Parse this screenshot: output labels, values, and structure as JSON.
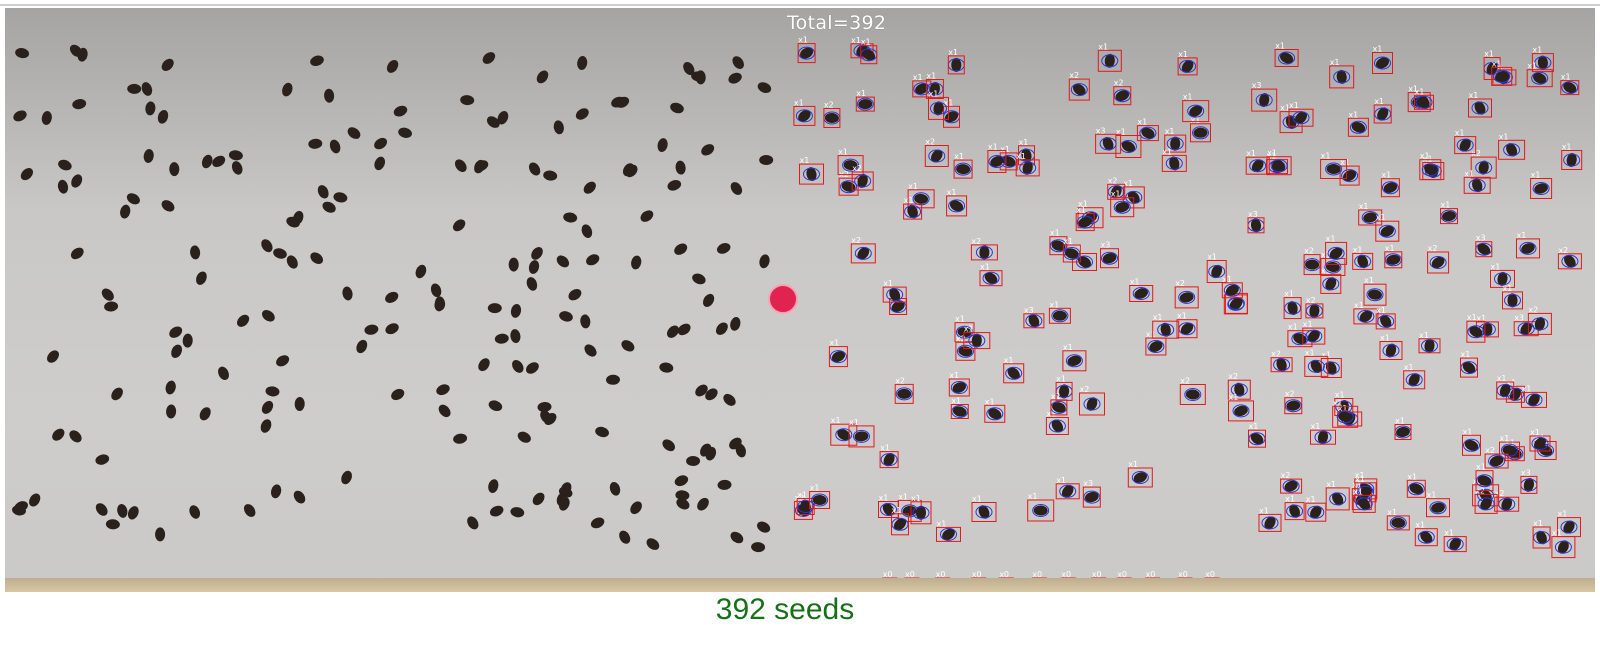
{
  "overlay": {
    "total_text": "Total=392"
  },
  "caption": {
    "count_text": "392 seeds"
  },
  "colors": {
    "seed": "#2a211d",
    "box": "#e11a1a",
    "outline": "#2b36d9",
    "record": "#e0244f",
    "caption": "#167016"
  },
  "detection_labels": [
    "x1",
    "x2",
    "x3",
    "x4",
    "x0"
  ]
}
